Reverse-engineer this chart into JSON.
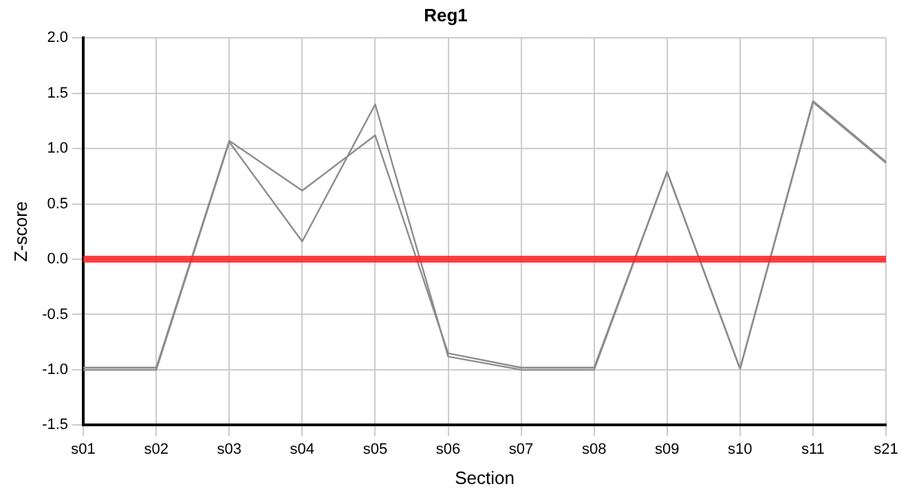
{
  "chart_data": {
    "type": "line",
    "title": "Reg1",
    "xlabel": "Section",
    "ylabel": "Z-score",
    "categories": [
      "s01",
      "s02",
      "s03",
      "s04",
      "s05",
      "s06",
      "s07",
      "s08",
      "s09",
      "s10",
      "s11",
      "s21"
    ],
    "series": [
      {
        "color": "#8c8c8c",
        "values": [
          -0.98,
          -0.98,
          1.07,
          0.62,
          1.12,
          -0.85,
          -0.98,
          -0.98,
          0.79,
          -0.99,
          1.43,
          0.88
        ]
      },
      {
        "color": "#8c8c8c",
        "values": [
          -1.0,
          -1.0,
          1.06,
          0.16,
          1.4,
          -0.88,
          -1.0,
          -1.0,
          0.79,
          -0.99,
          1.42,
          0.87
        ]
      }
    ],
    "ylim": [
      -1.5,
      2.0
    ],
    "yticks": [
      {
        "value": -1.5,
        "label": "-1.5"
      },
      {
        "value": -1,
        "label": "-1.0"
      },
      {
        "value": -0.5,
        "label": "-0.5"
      },
      {
        "value": 0,
        "label": "0.0"
      },
      {
        "value": 0.5,
        "label": "0.5"
      },
      {
        "value": 1,
        "label": "1.0"
      },
      {
        "value": 1.5,
        "label": "1.5"
      },
      {
        "value": 2,
        "label": "2.0"
      }
    ],
    "ref_lines": [
      {
        "axis": "y",
        "value": 0,
        "color": "#ff2020"
      }
    ],
    "grid": true,
    "legend": false,
    "marker": "none",
    "line_style": "solid"
  }
}
